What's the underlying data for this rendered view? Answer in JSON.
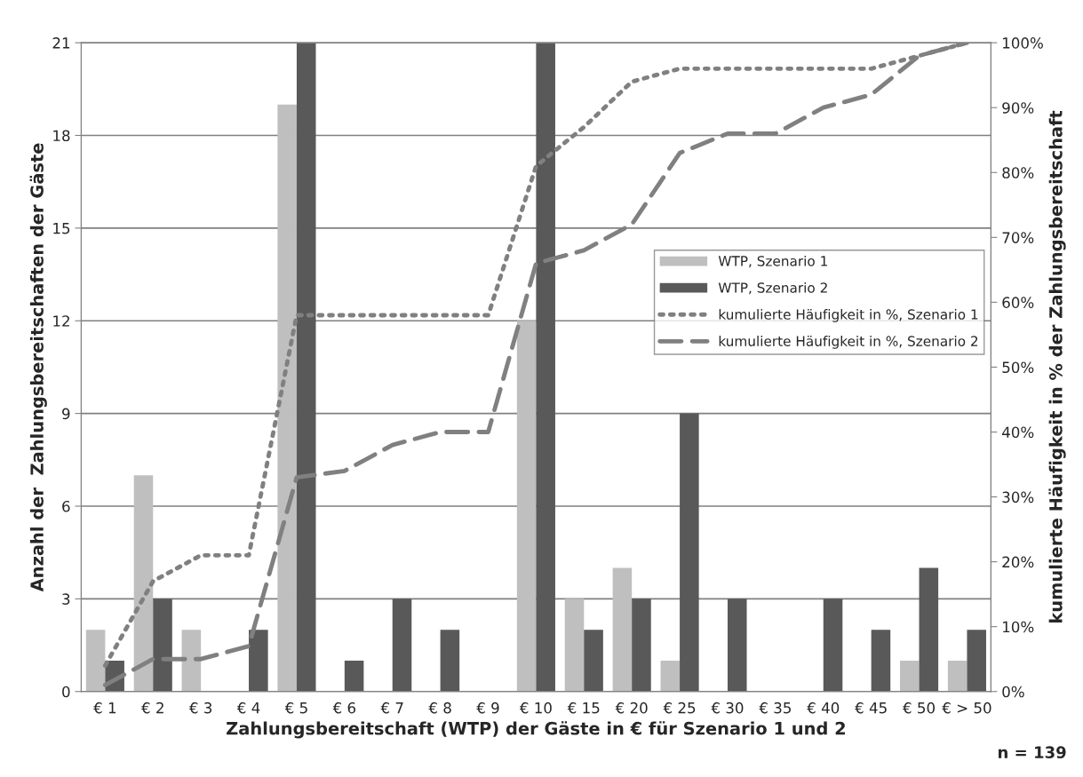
{
  "chart_data": {
    "type": "bar",
    "xlabel": "Zahlungsbereitschaft (WTP) der Gäste in € für Szenario 1 und 2",
    "ylabel": "Anzahl der  Zahlungsbereitschaften der Gäste",
    "y2label": "kumulierte Häufigkeit in % der Zahlungsbereitschaft",
    "categories": [
      "€ 1",
      "€ 2",
      "€ 3",
      "€ 4",
      "€ 5",
      "€ 6",
      "€ 7",
      "€ 8",
      "€ 9",
      "€ 10",
      "€ 15",
      "€ 20",
      "€ 25",
      "€ 30",
      "€ 35",
      "€ 40",
      "€ 45",
      "€ 50",
      "€ > 50"
    ],
    "series": [
      {
        "name": "WTP, Szenario 1",
        "color": "#bfbfbf",
        "values": [
          2,
          7,
          2,
          0,
          19,
          0,
          0,
          0,
          0,
          12,
          3,
          4,
          1,
          0,
          0,
          0,
          0,
          1,
          1
        ]
      },
      {
        "name": "WTP, Szenario 2",
        "color": "#595959",
        "values": [
          1,
          3,
          0,
          2,
          21,
          1,
          3,
          2,
          0,
          21,
          2,
          3,
          9,
          3,
          0,
          3,
          2,
          4,
          2
        ]
      },
      {
        "name": "kumulierte Häufigkeit in %, Szenario 1",
        "type": "line",
        "axis": "y2",
        "line_style": "dotted",
        "color": "#808080",
        "values": [
          4,
          17,
          21,
          21,
          58,
          58,
          58,
          58,
          58,
          81,
          87,
          94,
          96,
          96,
          96,
          96,
          96,
          98,
          100
        ]
      },
      {
        "name": "kumulierte Häufigkeit in %, Szenario 2",
        "type": "line",
        "axis": "y2",
        "line_style": "dashed",
        "color": "#808080",
        "values": [
          1,
          5,
          5,
          7,
          33,
          34,
          38,
          40,
          40,
          66,
          68,
          72,
          83,
          86,
          86,
          90,
          92,
          98,
          100
        ]
      }
    ],
    "ylim": [
      0,
      21
    ],
    "yticks": [
      0,
      3,
      6,
      9,
      12,
      15,
      18,
      21
    ],
    "y2lim": [
      0,
      100
    ],
    "y2ticks": [
      {
        "value": 0,
        "label": "0%"
      },
      {
        "value": 10,
        "label": "10%"
      },
      {
        "value": 20,
        "label": "20%"
      },
      {
        "value": 30,
        "label": "30%"
      },
      {
        "value": 40,
        "label": "40%"
      },
      {
        "value": 50,
        "label": "50%"
      },
      {
        "value": 60,
        "label": "60%"
      },
      {
        "value": 70,
        "label": "70%"
      },
      {
        "value": 80,
        "label": "80%"
      },
      {
        "value": 90,
        "label": "90%"
      },
      {
        "value": 100,
        "label": "100%"
      }
    ],
    "grid": "y",
    "legend": "right",
    "annotations": [
      "n = 139"
    ]
  }
}
